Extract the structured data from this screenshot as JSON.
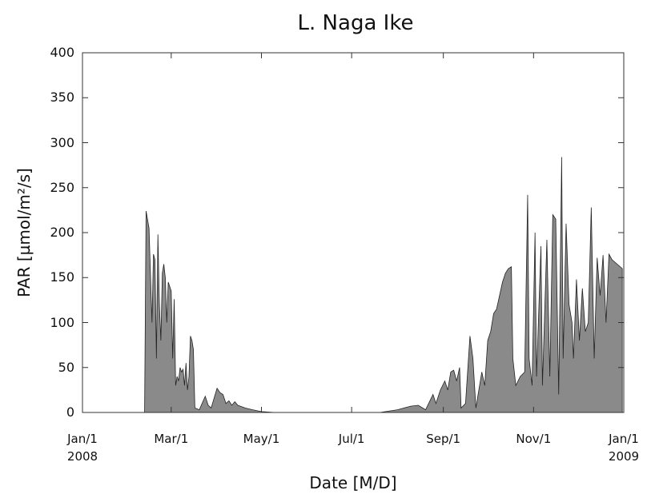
{
  "chart_data": {
    "type": "area",
    "title": "L. Naga Ike",
    "x_label": "Date [M/D]",
    "y_label": "PAR [µmol/m²/s]",
    "x": [
      "2008-02-12",
      "2008-02-13",
      "2008-02-15",
      "2008-02-17",
      "2008-02-18",
      "2008-02-19",
      "2008-02-20",
      "2008-02-21",
      "2008-02-22",
      "2008-02-23",
      "2008-02-24",
      "2008-02-25",
      "2008-02-26",
      "2008-02-27",
      "2008-02-28",
      "2008-03-01",
      "2008-03-02",
      "2008-03-03",
      "2008-03-04",
      "2008-03-05",
      "2008-03-06",
      "2008-03-07",
      "2008-03-08",
      "2008-03-09",
      "2008-03-10",
      "2008-03-11",
      "2008-03-12",
      "2008-03-13",
      "2008-03-14",
      "2008-03-15",
      "2008-03-16",
      "2008-03-17",
      "2008-03-20",
      "2008-03-24",
      "2008-03-26",
      "2008-03-28",
      "2008-04-01",
      "2008-04-03",
      "2008-04-05",
      "2008-04-07",
      "2008-04-09",
      "2008-04-11",
      "2008-04-13",
      "2008-04-15",
      "2008-04-20",
      "2008-04-25",
      "2008-05-01",
      "2008-05-10",
      "2008-07-20",
      "2008-08-01",
      "2008-08-10",
      "2008-08-15",
      "2008-08-20",
      "2008-08-25",
      "2008-08-27",
      "2008-08-30",
      "2008-09-02",
      "2008-09-04",
      "2008-09-06",
      "2008-09-08",
      "2008-09-10",
      "2008-09-12",
      "2008-09-13",
      "2008-09-16",
      "2008-09-19",
      "2008-09-21",
      "2008-09-23",
      "2008-09-27",
      "2008-09-29",
      "2008-10-01",
      "2008-10-03",
      "2008-10-05",
      "2008-10-07",
      "2008-10-09",
      "2008-10-11",
      "2008-10-13",
      "2008-10-15",
      "2008-10-17",
      "2008-10-18",
      "2008-10-20",
      "2008-10-23",
      "2008-10-26",
      "2008-10-28",
      "2008-10-29",
      "2008-10-31",
      "2008-11-02",
      "2008-11-03",
      "2008-11-06",
      "2008-11-07",
      "2008-11-10",
      "2008-11-12",
      "2008-11-14",
      "2008-11-16",
      "2008-11-18",
      "2008-11-20",
      "2008-11-21",
      "2008-11-23",
      "2008-11-25",
      "2008-11-27",
      "2008-11-28",
      "2008-11-30",
      "2008-12-02",
      "2008-12-04",
      "2008-12-06",
      "2008-12-08",
      "2008-12-10",
      "2008-12-12",
      "2008-12-14",
      "2008-12-16",
      "2008-12-18",
      "2008-12-20",
      "2008-12-22",
      "2008-12-24",
      "2008-12-31"
    ],
    "series": [
      {
        "name": "PAR",
        "color": "#8a8a8a",
        "values": [
          0,
          224,
          205,
          100,
          176,
          170,
          60,
          198,
          120,
          80,
          155,
          165,
          150,
          100,
          145,
          135,
          60,
          126,
          30,
          40,
          35,
          50,
          45,
          48,
          30,
          55,
          25,
          40,
          85,
          80,
          70,
          5,
          3,
          18,
          8,
          5,
          27,
          22,
          20,
          10,
          13,
          8,
          12,
          8,
          5,
          3,
          1,
          0,
          0,
          3,
          7,
          8,
          3,
          20,
          10,
          25,
          35,
          25,
          45,
          47,
          35,
          50,
          5,
          10,
          85,
          60,
          5,
          45,
          30,
          80,
          90,
          110,
          115,
          130,
          145,
          155,
          160,
          162,
          60,
          30,
          40,
          45,
          242,
          60,
          30,
          200,
          40,
          185,
          30,
          192,
          40,
          220,
          215,
          20,
          284,
          60,
          210,
          120,
          100,
          60,
          148,
          80,
          138,
          90,
          100,
          228,
          60,
          172,
          130,
          175,
          100,
          176,
          170,
          160
        ]
      }
    ],
    "xlim": [
      "2008-01-01",
      "2009-01-01"
    ],
    "xticks": [
      {
        "value": "2008-01-01",
        "label": "Jan/1\n2008"
      },
      {
        "value": "2008-03-01",
        "label": "Mar/1"
      },
      {
        "value": "2008-05-01",
        "label": "May/1"
      },
      {
        "value": "2008-07-01",
        "label": "Jul/1"
      },
      {
        "value": "2008-09-01",
        "label": "Sep/1"
      },
      {
        "value": "2008-11-01",
        "label": "Nov/1"
      },
      {
        "value": "2009-01-01",
        "label": "Jan/1\n2009"
      }
    ],
    "ylim": [
      0,
      400
    ],
    "yticks": [
      0,
      50,
      100,
      150,
      200,
      250,
      300,
      350,
      400
    ]
  }
}
